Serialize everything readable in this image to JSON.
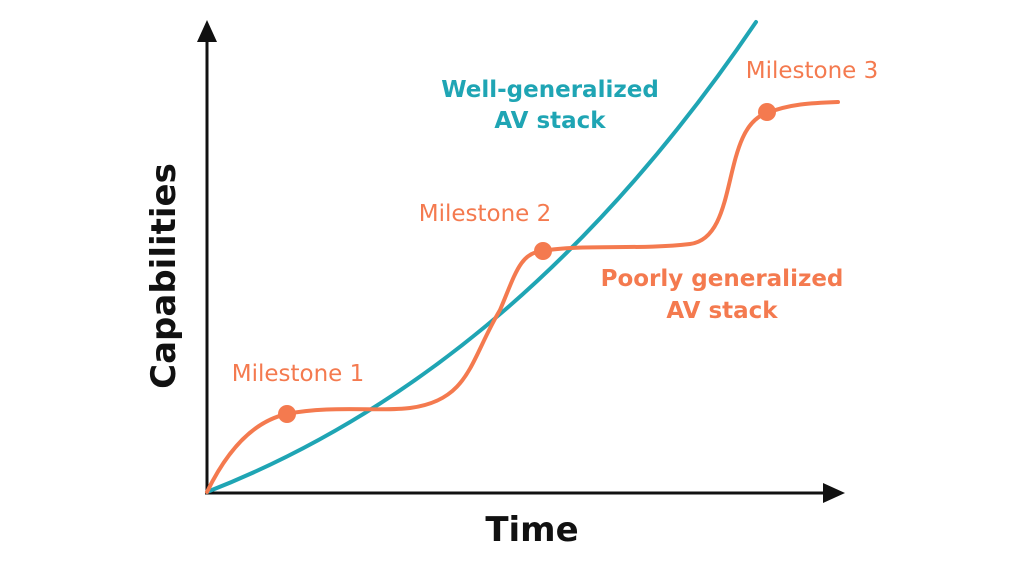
{
  "colors": {
    "background": "#ffffff",
    "axis": "#111111",
    "well_generalized": "#1fa5b4",
    "poorly_generalized": "#f47a4f"
  },
  "axes": {
    "x_label": "Time",
    "y_label": "Capabilities"
  },
  "series": {
    "well_generalized": {
      "label_line1": "Well-generalized",
      "label_line2": "AV stack"
    },
    "poorly_generalized": {
      "label_line1": "Poorly generalized",
      "label_line2": "AV stack"
    }
  },
  "milestones": [
    {
      "label": "Milestone 1"
    },
    {
      "label": "Milestone 2"
    },
    {
      "label": "Milestone 3"
    }
  ]
}
